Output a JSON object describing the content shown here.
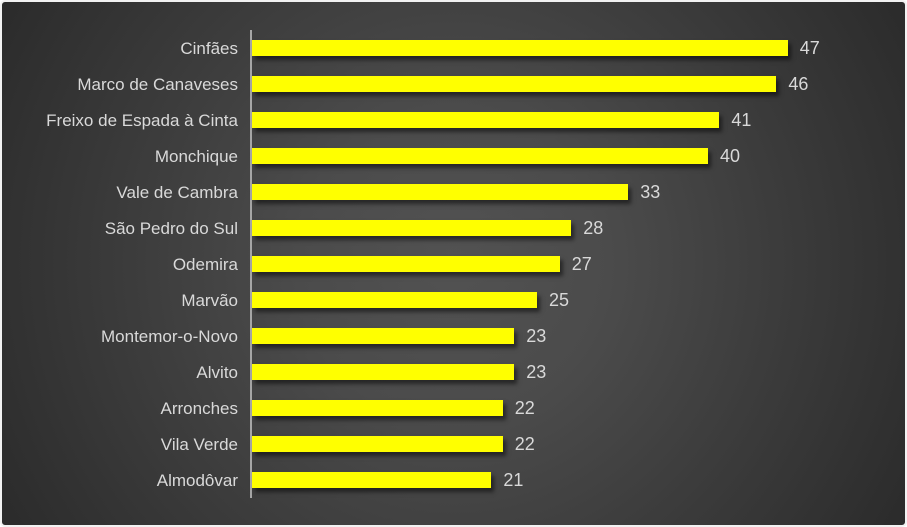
{
  "chart_data": {
    "type": "bar",
    "orientation": "horizontal",
    "title": "",
    "xlabel": "",
    "ylabel": "",
    "grid": false,
    "legend": false,
    "data_labels_shown": true,
    "categories": [
      "Cinfães",
      "Marco de Canaveses",
      "Freixo de Espada à Cinta",
      "Monchique",
      "Vale de Cambra",
      "São Pedro do Sul",
      "Odemira",
      "Marvão",
      "Montemor-o-Novo",
      "Alvito",
      "Arronches",
      "Vila Verde",
      "Almodôvar"
    ],
    "values": [
      47,
      46,
      41,
      40,
      33,
      28,
      27,
      25,
      23,
      23,
      22,
      22,
      21
    ],
    "bar_color": "#ffff00",
    "label_color": "#d9d9d9",
    "axis_color": "#a6a6a6",
    "background_center_color": "#515151",
    "background_edge_color": "#2b2b2b",
    "border_color": "#f2f2f2"
  }
}
